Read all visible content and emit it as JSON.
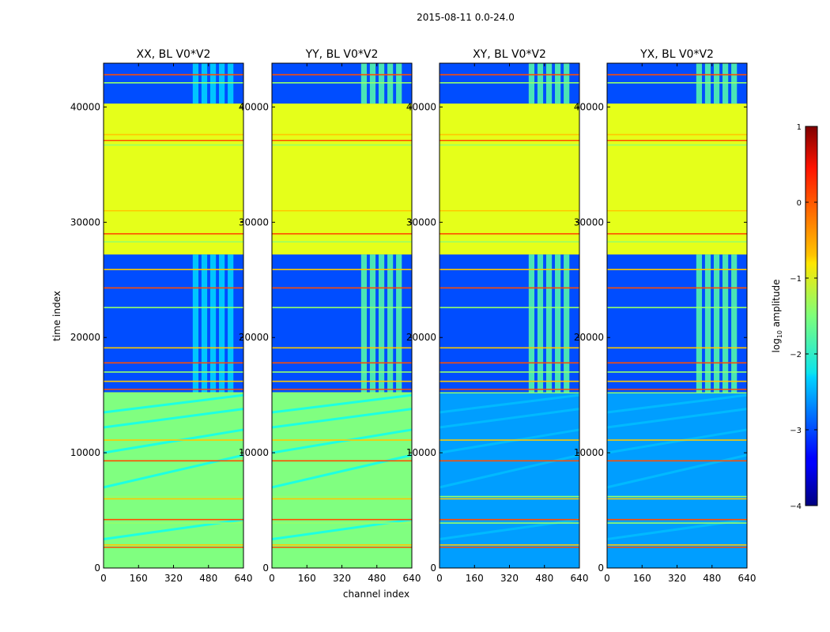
{
  "chart_data": {
    "type": "heatmap",
    "title": "2015-08-11 0.0-24.0",
    "xlabel": "channel index",
    "ylabel": "time index",
    "xlim": [
      0,
      640
    ],
    "ylim": [
      0,
      43800
    ],
    "x_ticks": [
      "0",
      "160",
      "320",
      "480",
      "640"
    ],
    "y_ticks": [
      "0",
      "10000",
      "20000",
      "30000",
      "40000"
    ],
    "y_tick_values": [
      0,
      10000,
      20000,
      30000,
      40000
    ],
    "x_tick_values": [
      0,
      160,
      320,
      480,
      640
    ],
    "colormap": "jet",
    "colorbar": {
      "label_prefix": "log",
      "label_sub": "10",
      "label_suffix": " amplitude",
      "range": [
        -4,
        1
      ],
      "ticks": [
        "1",
        "0",
        "−1",
        "−2",
        "−3",
        "−4"
      ],
      "tick_values": [
        1,
        0,
        -1,
        -2,
        -3,
        -4
      ]
    },
    "panels": [
      {
        "title": "XX, BL V0*V2",
        "polarization": "XX"
      },
      {
        "title": "YY, BL V0*V2",
        "polarization": "YY"
      },
      {
        "title": "XY, BL V0*V2",
        "polarization": "XY"
      },
      {
        "title": "YX, BL V0*V2",
        "polarization": "YX"
      }
    ],
    "regions_log10_amplitude": [
      {
        "t_start": 0,
        "t_end": 15200,
        "xx_yy": -1.5,
        "xy_yx": -2.6,
        "note": "diagonal drifting stripes in XX/YY"
      },
      {
        "t_start": 15200,
        "t_end": 27200,
        "xx_yy": -3.0,
        "xy_yx": -3.0,
        "note": "RFI bright in channels 400-600"
      },
      {
        "t_start": 27200,
        "t_end": 40300,
        "xx_yy": -1.0,
        "xy_yx": -1.0,
        "note": "flagged / saturated block"
      },
      {
        "t_start": 40300,
        "t_end": 43800,
        "xx_yy": -3.0,
        "xy_yx": -3.0,
        "note": "RFI bright in channels 400-600"
      }
    ],
    "rfi_channel_band": [
      400,
      600
    ],
    "horizontal_flag_lines_time": [
      1800,
      2000,
      3900,
      4200,
      6000,
      6200,
      9300,
      11100,
      15200,
      15500,
      16200,
      17000,
      17800,
      19100,
      22600,
      24300,
      25900,
      28300,
      29000,
      31000,
      36700,
      37100,
      37600,
      42100,
      42800
    ]
  }
}
